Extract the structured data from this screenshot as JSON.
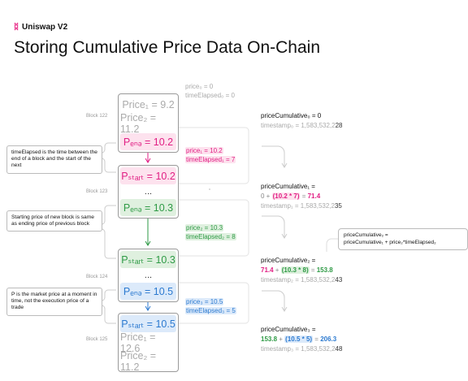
{
  "header": {
    "brand": "Uniswap V2",
    "title": "Storing Cumulative Price Data On-Chain"
  },
  "blocks": [
    {
      "label": "Block 122",
      "cells": [
        "Price₁ = 9.2",
        "Price₂ = 11.2",
        "Pₑₙₔ = 10.2"
      ]
    },
    {
      "label": "Block 123",
      "cells": [
        "Pₛₜₐᵣₜ = 10.2",
        "...",
        "Pₑₙₔ = 10.3"
      ]
    },
    {
      "label": "Block 124",
      "cells": [
        "Pₛₜₐᵣₜ = 10.3",
        "...",
        "Pₑₙₔ = 10.5"
      ]
    },
    {
      "label": "Block 125",
      "cells": [
        "Pₛₜₐᵣₜ = 10.5",
        "Price₁ = 12.6",
        "Price₂ = 11.2"
      ]
    }
  ],
  "notes": [
    "timeElapsed is the time between the end of a block and the start of the next",
    "Starting price of new block is same as ending price of previous block",
    "P is the market price at a moment in time, not the execution price of a trade"
  ],
  "middle": [
    {
      "price": "price₀ = 0",
      "elapsed": "timeElapsed₀ = 0"
    },
    {
      "price": "price₁ = 10.2",
      "elapsed": "timeElapsed₁ = 7"
    },
    {
      "price": "price₂ = 10.3",
      "elapsed": "timeElapsed₂ = 8"
    },
    {
      "price": "price₃ = 10.5",
      "elapsed": "timeElapsed₃ = 5"
    }
  ],
  "cumulative": [
    {
      "head": "priceCumulative₀ = 0",
      "eq": "",
      "ts_prefix": "timestamp₀ = 1,583,532,2",
      "ts_tail": "28"
    },
    {
      "head": "priceCumulative₁ =",
      "eq_a": "0 + ",
      "eq_b": "(10.2 * 7)",
      "eq_c": " = ",
      "eq_d": "71.4",
      "ts_prefix": "timestamp₁ = 1,583,532,2",
      "ts_tail": "35"
    },
    {
      "head": "priceCumulative₂ =",
      "eq_a": "71.4",
      "eq_a2": " + ",
      "eq_b": "(10.3 * 8)",
      "eq_c": " = ",
      "eq_d": "153.8",
      "ts_prefix": "timestamp₂ = 1,583,532,2",
      "ts_tail": "43"
    },
    {
      "head": "priceCumulative₃ =",
      "eq_a": "153.8",
      "eq_a2": " + ",
      "eq_b": "(10.5 * 5)",
      "eq_c": " = ",
      "eq_d": "206.3",
      "ts_prefix": "timestamp₃ = 1,583,532,2",
      "ts_tail": "48"
    }
  ],
  "formula": {
    "line1": "priceCumulative₂ =",
    "line2": "priceCumulative₁ + price₂*timeElapsed₂"
  }
}
